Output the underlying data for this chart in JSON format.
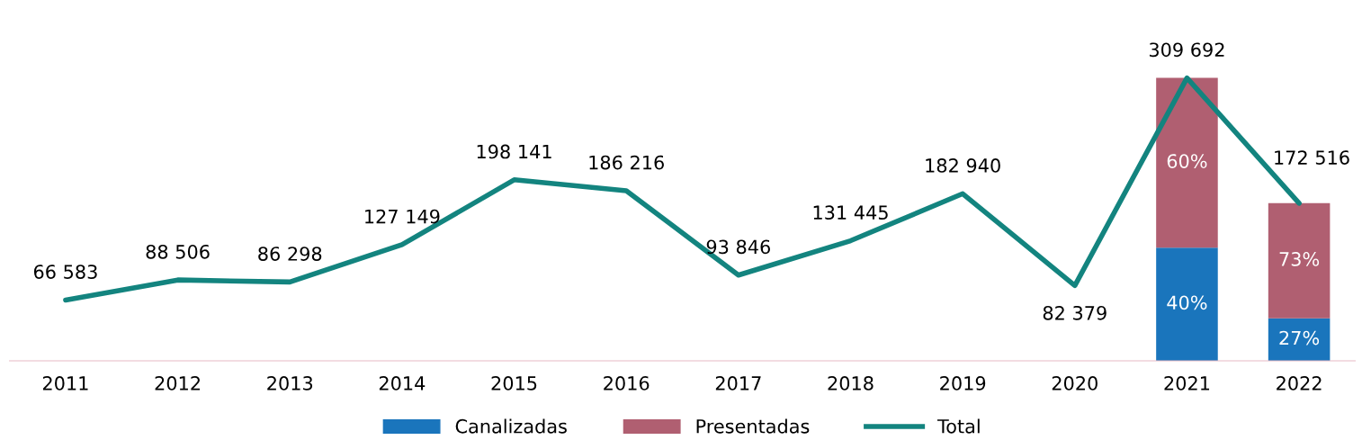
{
  "chart_data": {
    "type": "bar",
    "stacked": true,
    "tick_labels": "x",
    "grid": false,
    "legend": "bottom",
    "categories": [
      "2011",
      "2012",
      "2013",
      "2014",
      "2015",
      "2016",
      "2017",
      "2018",
      "2019",
      "2020",
      "2021",
      "2022"
    ],
    "series": [
      {
        "name": "Canalizadas",
        "color": "#1a75bc",
        "values": [
          null,
          null,
          null,
          null,
          null,
          null,
          null,
          null,
          null,
          null,
          123877,
          46579
        ]
      },
      {
        "name": "Presentadas",
        "color": "#b05f71",
        "values": [
          null,
          null,
          null,
          null,
          null,
          null,
          null,
          null,
          null,
          null,
          185815,
          125937
        ]
      },
      {
        "name": "Total",
        "type": "line",
        "color": "#13847f",
        "line_style": "solid",
        "marker": "none",
        "values": [
          66583,
          88506,
          86298,
          127149,
          198141,
          186216,
          93846,
          131445,
          182940,
          82379,
          309692,
          172516
        ],
        "value_labels": [
          "66 583",
          "88 506",
          "86 298",
          "127 149",
          "198 141",
          "186 216",
          "93 846",
          "131 445",
          "182 940",
          "82 379",
          "309 692",
          "172 516"
        ]
      }
    ],
    "annotations": [
      "40%",
      "27%",
      "60%",
      "73%"
    ]
  }
}
